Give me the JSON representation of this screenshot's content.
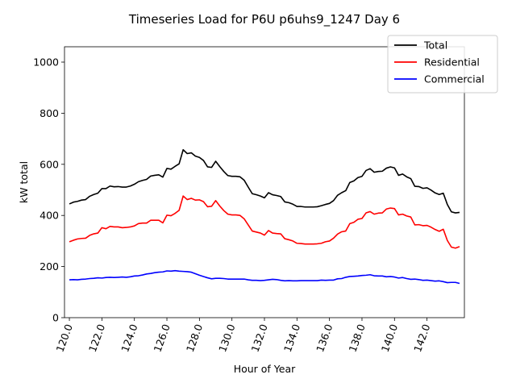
{
  "chart_data": {
    "type": "line",
    "title": "Timeseries Load for P6U p6uhs9_1247  Day 6",
    "xlabel": "Hour of Year",
    "ylabel": "kW total",
    "xlim": [
      119.7,
      144.3
    ],
    "ylim": [
      0,
      1060
    ],
    "x_ticks": [
      120,
      122,
      124,
      126,
      128,
      130,
      132,
      134,
      136,
      138,
      140,
      142
    ],
    "x_tick_labels": [
      "120.0",
      "122.0",
      "124.0",
      "126.0",
      "128.0",
      "130.0",
      "132.0",
      "134.0",
      "136.0",
      "138.0",
      "140.0",
      "142.0"
    ],
    "y_ticks": [
      0,
      200,
      400,
      600,
      800,
      1000
    ],
    "y_tick_labels": [
      "0",
      "200",
      "400",
      "600",
      "800",
      "1000"
    ],
    "legend_position": "top-right",
    "x_start": 120,
    "x_step": 0.25,
    "series": [
      {
        "name": "Total",
        "color": "#000000",
        "values": [
          445,
          452,
          455,
          460,
          462,
          475,
          482,
          487,
          505,
          505,
          515,
          512,
          513,
          511,
          511,
          515,
          522,
          532,
          537,
          541,
          554,
          557,
          559,
          550,
          584,
          581,
          592,
          602,
          657,
          642,
          645,
          632,
          627,
          615,
          590,
          588,
          612,
          591,
          572,
          556,
          553,
          553,
          551,
          538,
          511,
          485,
          481,
          476,
          469,
          489,
          481,
          478,
          474,
          453,
          450,
          444,
          435,
          435,
          433,
          433,
          433,
          434,
          438,
          443,
          447,
          458,
          479,
          489,
          497,
          529,
          535,
          548,
          553,
          576,
          583,
          569,
          572,
          573,
          585,
          590,
          586,
          557,
          562,
          551,
          544,
          514,
          513,
          506,
          508,
          499,
          488,
          482,
          487,
          443,
          414,
          410,
          412
        ]
      },
      {
        "name": "Residential",
        "color": "#ff0000",
        "values": [
          297,
          303,
          308,
          310,
          311,
          322,
          328,
          331,
          352,
          348,
          357,
          355,
          355,
          352,
          353,
          355,
          359,
          368,
          370,
          370,
          381,
          381,
          381,
          371,
          401,
          399,
          408,
          420,
          476,
          462,
          467,
          460,
          461,
          454,
          434,
          436,
          458,
          437,
          419,
          405,
          402,
          402,
          400,
          387,
          363,
          339,
          335,
          331,
          323,
          341,
          331,
          329,
          328,
          309,
          305,
          300,
          291,
          290,
          288,
          288,
          288,
          289,
          291,
          297,
          300,
          311,
          327,
          336,
          339,
          368,
          373,
          385,
          388,
          410,
          415,
          405,
          409,
          410,
          425,
          429,
          427,
          402,
          405,
          398,
          394,
          363,
          364,
          360,
          361,
          354,
          345,
          338,
          346,
          302,
          276,
          272,
          278
        ]
      },
      {
        "name": "Commercial",
        "color": "#0000ff",
        "values": [
          148,
          149,
          148,
          150,
          151,
          153,
          154,
          156,
          155,
          157,
          158,
          157,
          158,
          159,
          158,
          160,
          163,
          164,
          167,
          171,
          173,
          176,
          178,
          179,
          183,
          182,
          184,
          182,
          181,
          180,
          178,
          172,
          166,
          161,
          156,
          152,
          154,
          154,
          153,
          151,
          151,
          151,
          151,
          151,
          148,
          146,
          146,
          145,
          146,
          148,
          150,
          149,
          146,
          144,
          145,
          144,
          144,
          145,
          145,
          145,
          145,
          145,
          147,
          146,
          147,
          147,
          152,
          153,
          158,
          161,
          162,
          163,
          165,
          166,
          168,
          164,
          163,
          163,
          160,
          161,
          159,
          155,
          157,
          153,
          150,
          151,
          149,
          146,
          147,
          145,
          143,
          144,
          141,
          137,
          138,
          138,
          134
        ]
      }
    ]
  }
}
